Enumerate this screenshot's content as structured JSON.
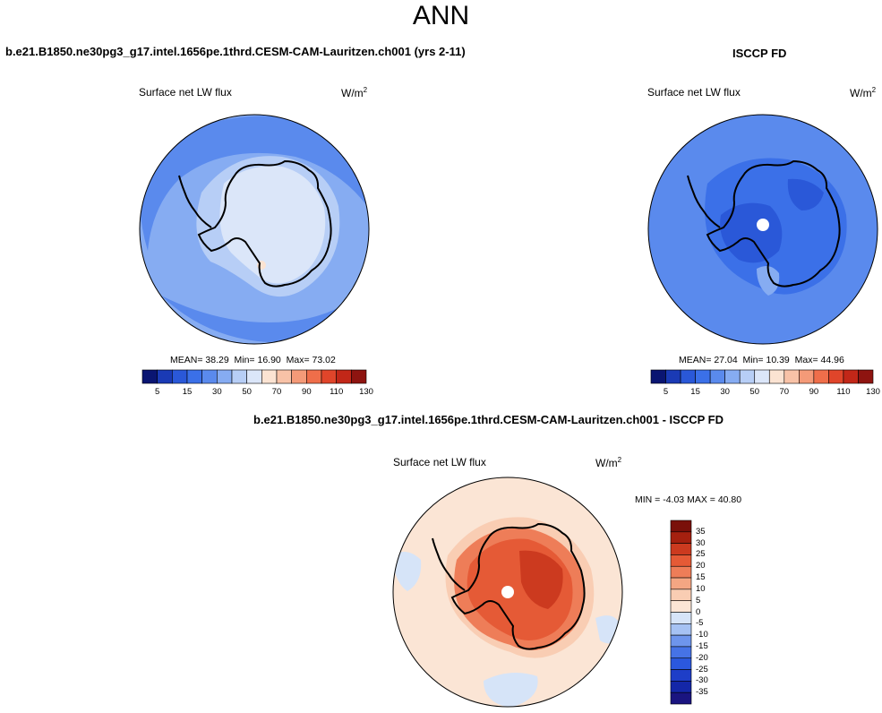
{
  "title": "ANN",
  "colors": {
    "seq": [
      "#0a1572",
      "#1a3ab5",
      "#2a58d8",
      "#3b70e8",
      "#5a8aed",
      "#86acf2",
      "#b7cef6",
      "#dbe6f9",
      "#fbe3d2",
      "#f8c2a7",
      "#f49a78",
      "#ef6e4a",
      "#e0452a",
      "#c22718",
      "#8e1410"
    ],
    "diff": [
      "#1a1480",
      "#1427a8",
      "#1e3ec8",
      "#2b58de",
      "#4673e6",
      "#6e95ec",
      "#a6c2f3",
      "#d6e4f8",
      "#fbe5d5",
      "#f9cdb3",
      "#f4a683",
      "#ee7d58",
      "#e55a36",
      "#cc3a1f",
      "#a5200f",
      "#7a100a"
    ],
    "land": "#000000"
  },
  "panels": {
    "model": {
      "title": "b.e21.B1850.ne30pg3_g17.intel.1656pe.1thrd.CESM-CAM-Lauritzen.ch001 (yrs 2-11)",
      "var": "Surface net LW flux",
      "unit": "W/m",
      "unit_sup": "2",
      "mean_label": "MEAN=",
      "mean": "38.29",
      "min_label": "Min=",
      "min": "16.90",
      "max_label": "Max=",
      "max": "73.02"
    },
    "obs": {
      "title": "ISCCP FD",
      "var": "Surface net LW flux",
      "unit": "W/m",
      "unit_sup": "2",
      "mean_label": "MEAN=",
      "mean": "27.04",
      "min_label": "Min=",
      "min": "10.39",
      "max_label": "Max=",
      "max": "44.96"
    },
    "diff": {
      "title": "b.e21.B1850.ne30pg3_g17.intel.1656pe.1thrd.CESM-CAM-Lauritzen.ch001 - ISCCP FD",
      "var": "Surface net LW flux",
      "unit": "W/m",
      "unit_sup": "2",
      "min_label": "MIN =",
      "min": "-4.03",
      "max_label": "MAX =",
      "max": "40.80"
    }
  },
  "chart_data": [
    {
      "type": "heatmap",
      "name": "model",
      "projection": "south polar stereographic",
      "title": "b.e21.B1850.ne30pg3_g17.intel.1656pe.1thrd.CESM-CAM-Lauritzen.ch001 (yrs 2-11)",
      "variable": "Surface net LW flux",
      "units": "W/m2",
      "stats": {
        "mean": 38.29,
        "min": 16.9,
        "max": 73.02
      },
      "contour_levels": [
        5,
        10,
        15,
        20,
        30,
        40,
        50,
        60,
        70,
        80,
        90,
        100,
        110,
        120,
        130
      ],
      "colorbar_labels": [
        "5",
        "15",
        "30",
        "50",
        "70",
        "90",
        "110",
        "130"
      ]
    },
    {
      "type": "heatmap",
      "name": "obs",
      "projection": "south polar stereographic",
      "title": "ISCCP FD",
      "variable": "Surface net LW flux",
      "units": "W/m2",
      "stats": {
        "mean": 27.04,
        "min": 10.39,
        "max": 44.96
      },
      "contour_levels": [
        5,
        10,
        15,
        20,
        30,
        40,
        50,
        60,
        70,
        80,
        90,
        100,
        110,
        120,
        130
      ],
      "colorbar_labels": [
        "5",
        "15",
        "30",
        "50",
        "70",
        "90",
        "110",
        "130"
      ]
    },
    {
      "type": "heatmap",
      "name": "difference",
      "projection": "south polar stereographic",
      "title": "b.e21.B1850.ne30pg3_g17.intel.1656pe.1thrd.CESM-CAM-Lauritzen.ch001 - ISCCP FD",
      "variable": "Surface net LW flux",
      "units": "W/m2",
      "stats": {
        "min": -4.03,
        "max": 40.8
      },
      "contour_levels": [
        -35,
        -30,
        -25,
        -20,
        -15,
        -10,
        -5,
        0,
        5,
        10,
        15,
        20,
        25,
        30,
        35
      ],
      "colorbar_labels": [
        "35",
        "30",
        "25",
        "20",
        "15",
        "10",
        "5",
        "0",
        "-5",
        "-10",
        "-15",
        "-20",
        "-25",
        "-30",
        "-35"
      ]
    }
  ]
}
